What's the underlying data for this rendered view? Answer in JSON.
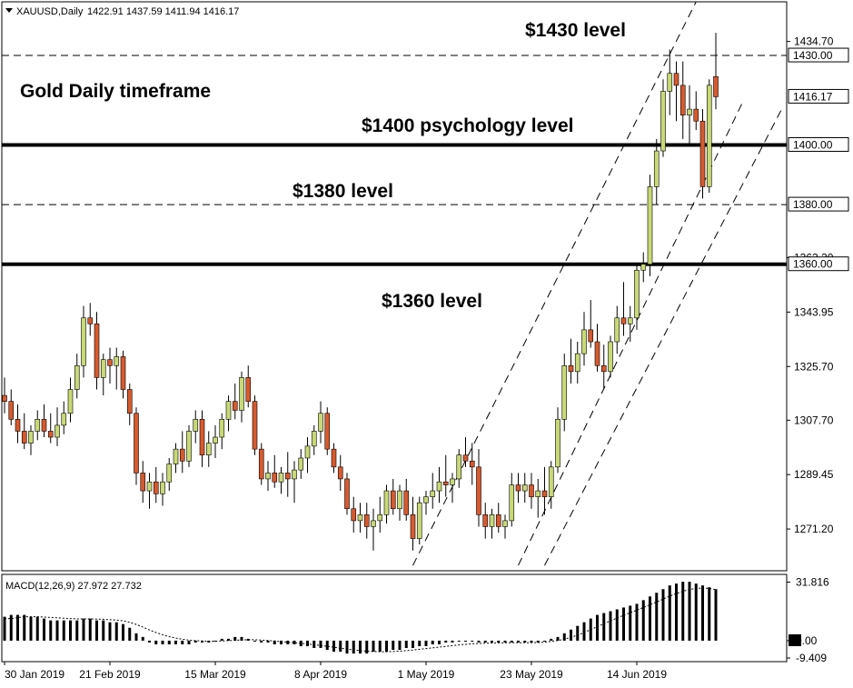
{
  "chart_data": {
    "type": "candlestick",
    "header": {
      "symbol_label": "XAUUSD,Daily",
      "ohlc_text": "1422.91 1437.59 1411.94 1416.17"
    },
    "price_axis": {
      "range": [
        1257.2,
        1448.0
      ],
      "ticks": [
        "1434.70",
        "1416.17",
        "1400.00",
        "1380.00",
        "1362.20",
        "1343.95",
        "1325.70",
        "1307.70",
        "1289.45",
        "1271.20"
      ],
      "tick_values": [
        1434.7,
        1416.17,
        1400.0,
        1380.0,
        1362.2,
        1343.95,
        1325.7,
        1307.7,
        1289.45,
        1271.2
      ],
      "boxed_labels": [
        "1430.00",
        "1416.17",
        "1400.00",
        "1380.00",
        "1360.00"
      ]
    },
    "levels": [
      {
        "price": 1430,
        "style": "dashed"
      },
      {
        "price": 1400,
        "style": "thick"
      },
      {
        "price": 1380,
        "style": "dashed"
      },
      {
        "price": 1360,
        "style": "thick"
      }
    ],
    "annotations": {
      "title": "Gold Daily timeframe",
      "level_1430": "$1430 level",
      "level_1400": "$1400 psychology level",
      "level_1380": "$1380 level",
      "level_1360": "$1360 level"
    },
    "x_axis": {
      "labels": [
        "30 Jan 2019",
        "21 Feb 2019",
        "15 Mar 2019",
        "8 Apr 2019",
        "1 May 2019",
        "23 May 2019",
        "14 Jun 2019"
      ],
      "label_bar_index": [
        0,
        16,
        32,
        48,
        64,
        80,
        96
      ]
    },
    "candles": [
      [
        1316,
        1322,
        1310,
        1314
      ],
      [
        1314,
        1318,
        1306,
        1308
      ],
      [
        1308,
        1313,
        1300,
        1304
      ],
      [
        1304,
        1310,
        1298,
        1300
      ],
      [
        1300,
        1306,
        1296,
        1304
      ],
      [
        1304,
        1311,
        1301,
        1308
      ],
      [
        1308,
        1313,
        1302,
        1304
      ],
      [
        1304,
        1310,
        1300,
        1302
      ],
      [
        1302,
        1312,
        1299,
        1306
      ],
      [
        1306,
        1314,
        1303,
        1310
      ],
      [
        1310,
        1322,
        1307,
        1318
      ],
      [
        1318,
        1330,
        1315,
        1326
      ],
      [
        1326,
        1346,
        1322,
        1342
      ],
      [
        1342,
        1347,
        1336,
        1340
      ],
      [
        1340,
        1344,
        1318,
        1322
      ],
      [
        1322,
        1330,
        1316,
        1328
      ],
      [
        1328,
        1332,
        1320,
        1326
      ],
      [
        1326,
        1332,
        1318,
        1329
      ],
      [
        1329,
        1331,
        1315,
        1318
      ],
      [
        1318,
        1320,
        1306,
        1310
      ],
      [
        1310,
        1312,
        1286,
        1290
      ],
      [
        1290,
        1294,
        1280,
        1284
      ],
      [
        1284,
        1290,
        1278,
        1287
      ],
      [
        1287,
        1292,
        1280,
        1283
      ],
      [
        1283,
        1290,
        1279,
        1287
      ],
      [
        1287,
        1295,
        1284,
        1293
      ],
      [
        1293,
        1300,
        1290,
        1298
      ],
      [
        1298,
        1304,
        1290,
        1294
      ],
      [
        1294,
        1306,
        1292,
        1304
      ],
      [
        1304,
        1311,
        1300,
        1308
      ],
      [
        1308,
        1311,
        1292,
        1296
      ],
      [
        1296,
        1304,
        1292,
        1300
      ],
      [
        1300,
        1306,
        1295,
        1302
      ],
      [
        1302,
        1310,
        1298,
        1308
      ],
      [
        1308,
        1316,
        1304,
        1314
      ],
      [
        1314,
        1320,
        1308,
        1311
      ],
      [
        1311,
        1324,
        1307,
        1322
      ],
      [
        1322,
        1326,
        1312,
        1314
      ],
      [
        1314,
        1316,
        1296,
        1298
      ],
      [
        1298,
        1300,
        1286,
        1288
      ],
      [
        1288,
        1294,
        1284,
        1290
      ],
      [
        1290,
        1296,
        1285,
        1287
      ],
      [
        1287,
        1292,
        1283,
        1290
      ],
      [
        1290,
        1297,
        1282,
        1288
      ],
      [
        1288,
        1294,
        1280,
        1291
      ],
      [
        1291,
        1298,
        1288,
        1295
      ],
      [
        1295,
        1302,
        1290,
        1299
      ],
      [
        1299,
        1306,
        1296,
        1304
      ],
      [
        1304,
        1314,
        1300,
        1310
      ],
      [
        1310,
        1312,
        1296,
        1298
      ],
      [
        1298,
        1300,
        1290,
        1292
      ],
      [
        1292,
        1296,
        1284,
        1288
      ],
      [
        1288,
        1290,
        1276,
        1278
      ],
      [
        1278,
        1282,
        1270,
        1274
      ],
      [
        1274,
        1280,
        1270,
        1276
      ],
      [
        1276,
        1280,
        1268,
        1272
      ],
      [
        1272,
        1278,
        1264,
        1274
      ],
      [
        1274,
        1282,
        1270,
        1276
      ],
      [
        1276,
        1286,
        1273,
        1284
      ],
      [
        1284,
        1288,
        1276,
        1278
      ],
      [
        1278,
        1286,
        1274,
        1284
      ],
      [
        1284,
        1288,
        1274,
        1276
      ],
      [
        1276,
        1282,
        1264,
        1268
      ],
      [
        1268,
        1282,
        1266,
        1280
      ],
      [
        1280,
        1284,
        1276,
        1282
      ],
      [
        1282,
        1290,
        1278,
        1284
      ],
      [
        1284,
        1292,
        1280,
        1287
      ],
      [
        1287,
        1296,
        1282,
        1286
      ],
      [
        1286,
        1290,
        1280,
        1288
      ],
      [
        1288,
        1298,
        1285,
        1296
      ],
      [
        1296,
        1302,
        1292,
        1294
      ],
      [
        1294,
        1300,
        1286,
        1292
      ],
      [
        1292,
        1298,
        1272,
        1276
      ],
      [
        1276,
        1280,
        1268,
        1272
      ],
      [
        1272,
        1278,
        1268,
        1276
      ],
      [
        1276,
        1280,
        1270,
        1272
      ],
      [
        1272,
        1276,
        1268,
        1274
      ],
      [
        1274,
        1290,
        1272,
        1286
      ],
      [
        1286,
        1290,
        1280,
        1284
      ],
      [
        1284,
        1290,
        1280,
        1286
      ],
      [
        1286,
        1290,
        1278,
        1282
      ],
      [
        1282,
        1288,
        1275,
        1284
      ],
      [
        1284,
        1292,
        1276,
        1282
      ],
      [
        1282,
        1294,
        1278,
        1292
      ],
      [
        1292,
        1312,
        1290,
        1308
      ],
      [
        1308,
        1330,
        1304,
        1326
      ],
      [
        1326,
        1335,
        1320,
        1324
      ],
      [
        1324,
        1334,
        1320,
        1330
      ],
      [
        1330,
        1344,
        1326,
        1338
      ],
      [
        1338,
        1348,
        1332,
        1334
      ],
      [
        1334,
        1340,
        1324,
        1326
      ],
      [
        1326,
        1333,
        1318,
        1324
      ],
      [
        1324,
        1336,
        1322,
        1334
      ],
      [
        1334,
        1346,
        1330,
        1342
      ],
      [
        1342,
        1354,
        1336,
        1340
      ],
      [
        1340,
        1346,
        1334,
        1342
      ],
      [
        1342,
        1360,
        1338,
        1358
      ],
      [
        1358,
        1364,
        1354,
        1360
      ],
      [
        1360,
        1390,
        1356,
        1386
      ],
      [
        1386,
        1402,
        1380,
        1398
      ],
      [
        1398,
        1422,
        1396,
        1418
      ],
      [
        1418,
        1432,
        1410,
        1424
      ],
      [
        1424,
        1428,
        1408,
        1420
      ],
      [
        1420,
        1428,
        1402,
        1410
      ],
      [
        1410,
        1420,
        1400,
        1412
      ],
      [
        1412,
        1418,
        1405,
        1408
      ],
      [
        1408,
        1412,
        1382,
        1386
      ],
      [
        1386,
        1422,
        1384,
        1420
      ],
      [
        1422.91,
        1437.59,
        1411.94,
        1416.17
      ]
    ],
    "macd": {
      "label": "MACD(12,26,9) 27.972 27.732",
      "params": [
        12,
        26,
        9
      ],
      "value": 27.972,
      "signal_value": 27.732,
      "range": [
        -11.4,
        36.0
      ],
      "ticks": [
        "31.816",
        "0.00",
        "-9.409"
      ],
      "tick_values": [
        31.816,
        0.0,
        -9.409
      ],
      "histogram": [
        13,
        14,
        14,
        14,
        13,
        13,
        12,
        11,
        11,
        11,
        11,
        11,
        12,
        12,
        11,
        11,
        10,
        10,
        9,
        7,
        4,
        2,
        -1,
        -2,
        -2,
        -2,
        -2,
        -2,
        -2,
        -1,
        -1,
        -1,
        0,
        1,
        1,
        2,
        2,
        1,
        0,
        -1,
        -1,
        -2,
        -2,
        -2,
        -2,
        -3,
        -3,
        -4,
        -4,
        -5,
        -6,
        -6,
        -7,
        -7,
        -7,
        -7,
        -6,
        -6,
        -6,
        -5,
        -5,
        -4,
        -4,
        -3,
        -3,
        -2,
        -2,
        -1,
        -1,
        0,
        0,
        0,
        -1,
        -1,
        -1,
        -1,
        -1,
        -1,
        -1,
        -1,
        -1,
        -1,
        0,
        1,
        2,
        4,
        6,
        8,
        10,
        12,
        14,
        15,
        16,
        17,
        18,
        19,
        20,
        22,
        24,
        26,
        28,
        30,
        31,
        32,
        32,
        31,
        30,
        29,
        27.972
      ],
      "signal": [
        12,
        12,
        12.5,
        13,
        13,
        13,
        12.8,
        12.6,
        12.4,
        12.2,
        12,
        11.8,
        11.8,
        11.8,
        11.7,
        11.6,
        11.4,
        11.2,
        10.8,
        10,
        8.8,
        7.4,
        5.8,
        4.4,
        3.2,
        2.2,
        1.4,
        0.8,
        0.3,
        0,
        -0.2,
        -0.3,
        -0.3,
        -0.2,
        0,
        0.2,
        0.4,
        0.5,
        0.5,
        0.3,
        0.1,
        -0.2,
        -0.5,
        -0.8,
        -1.1,
        -1.4,
        -1.8,
        -2.2,
        -2.6,
        -3.1,
        -3.6,
        -4.1,
        -4.6,
        -5,
        -5.4,
        -5.7,
        -5.9,
        -6,
        -6,
        -5.9,
        -5.7,
        -5.4,
        -5.1,
        -4.7,
        -4.3,
        -3.9,
        -3.5,
        -3.1,
        -2.7,
        -2.3,
        -2,
        -1.7,
        -1.5,
        -1.4,
        -1.3,
        -1.2,
        -1.2,
        -1.1,
        -1.1,
        -1.1,
        -1.1,
        -1,
        -0.8,
        -0.4,
        0.1,
        0.8,
        1.8,
        3,
        4.4,
        6,
        7.6,
        9.2,
        10.8,
        12.3,
        13.8,
        15.2,
        16.6,
        18,
        19.5,
        21,
        22.6,
        24.2,
        25.6,
        26.8,
        27.8,
        28.4,
        28.6,
        28.4,
        27.732
      ]
    },
    "channel_lines": [
      {
        "from": {
          "bar": 62,
          "price": 1259
        },
        "to": {
          "bar": 105,
          "price": 1448
        }
      },
      {
        "from": {
          "bar": 78,
          "price": 1259
        },
        "to": {
          "bar": 112,
          "price": 1414
        }
      },
      {
        "from": {
          "bar": 82,
          "price": 1259
        },
        "to": {
          "bar": 118,
          "price": 1412
        }
      }
    ],
    "colors": {
      "bull": "#c8d977",
      "bear": "#d65a2e",
      "wick": "#000000",
      "background": "#ffffff"
    }
  }
}
